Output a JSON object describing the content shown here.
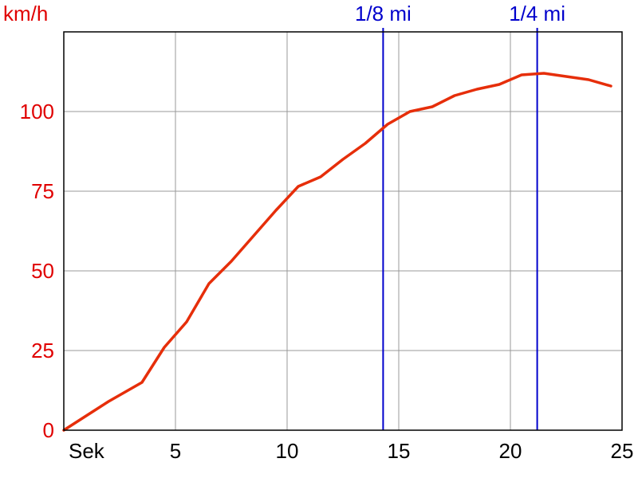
{
  "chart_data": {
    "type": "line",
    "ylabel": "km/h",
    "xlabel": "Sek",
    "xlim": [
      0,
      25
    ],
    "ylim": [
      0,
      125
    ],
    "x_ticks": [
      5,
      10,
      15,
      20,
      25
    ],
    "y_ticks": [
      0,
      25,
      50,
      75,
      100
    ],
    "grid": true,
    "colors": {
      "line": "#e62e0a",
      "grid": "#999999",
      "markers": "#0000cc",
      "ytick": "#e00000",
      "xtick": "#000000"
    },
    "series": [
      {
        "x": [
          0,
          1,
          2,
          3,
          3.5,
          4.5,
          5.5,
          6.5,
          7.5,
          8.5,
          9.5,
          10.5,
          11.5,
          12.5,
          13.5,
          14.5,
          15.5,
          16.5,
          17.5,
          18.5,
          19.5,
          20.5,
          21.5,
          22.5,
          23.5,
          24.5
        ],
        "y": [
          0,
          4.5,
          9,
          13,
          15,
          26,
          34,
          46,
          53,
          61,
          69,
          76.5,
          79.5,
          85,
          90,
          96,
          100,
          101.5,
          105,
          107,
          108.5,
          111.5,
          112,
          111,
          110,
          108
        ]
      }
    ],
    "markers": [
      {
        "label": "1/8 mi",
        "x": 14.3
      },
      {
        "label": "1/4 mi",
        "x": 21.2
      }
    ]
  }
}
